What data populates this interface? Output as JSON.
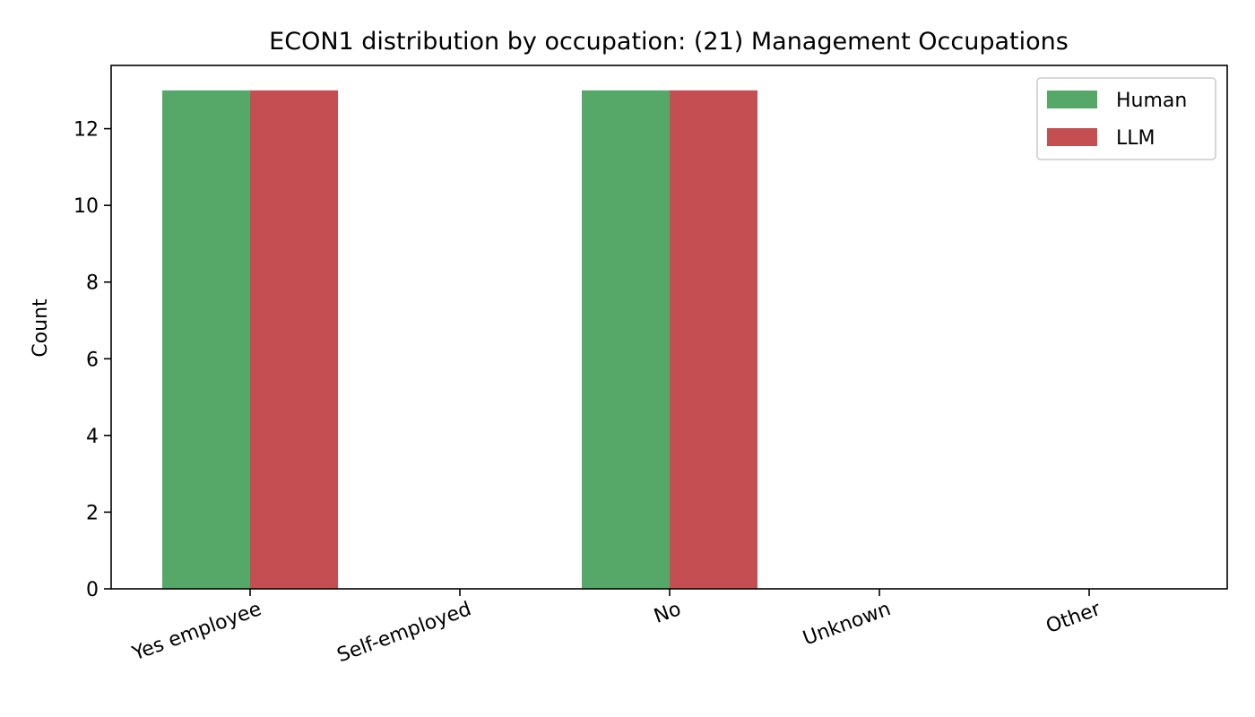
{
  "chart_data": {
    "type": "bar",
    "title": "ECON1 distribution by occupation: (21) Management Occupations",
    "xlabel": "",
    "ylabel": "Count",
    "categories": [
      "Yes employee",
      "Self-employed",
      "No",
      "Unknown",
      "Other"
    ],
    "series": [
      {
        "name": "Human",
        "values": [
          13,
          0,
          13,
          0,
          0
        ],
        "color": "#55a868"
      },
      {
        "name": "LLM",
        "values": [
          13,
          0,
          13,
          0,
          0
        ],
        "color": "#c44e52"
      }
    ],
    "ylim": [
      0,
      13.65
    ],
    "yticks": [
      0,
      2,
      4,
      6,
      8,
      10,
      12
    ],
    "grid": false,
    "legend_position": "top-right"
  }
}
